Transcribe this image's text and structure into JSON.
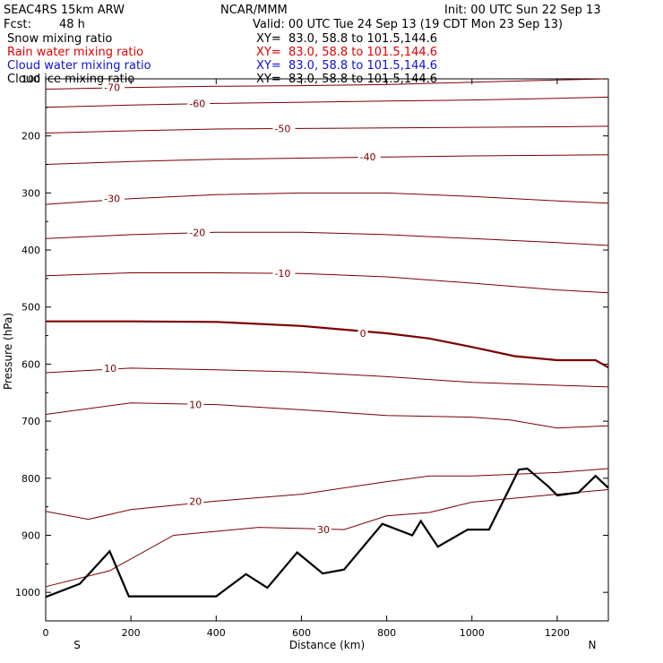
{
  "header": {
    "model": "SEAC4RS 15km ARW",
    "center": "NCAR/MMM",
    "init": "Init: 00 UTC Sun 22 Sep 13",
    "fcst_label": "Fcst:",
    "fcst_value": "48 h",
    "valid": "Valid: 00 UTC Tue 24 Sep 13 (19 CDT Mon 23 Sep 13)"
  },
  "legend": [
    {
      "name": "Snow mixing ratio",
      "xy": "XY=  83.0, 58.8 to 101.5,144.6",
      "color": "#000000"
    },
    {
      "name": "Rain water mixing ratio",
      "xy": "XY=  83.0, 58.8 to 101.5,144.6",
      "color": "#e00000"
    },
    {
      "name": "Cloud water mixing ratio",
      "xy": "XY=  83.0, 58.8 to 101.5,144.6",
      "color": "#1010d0"
    },
    {
      "name": "Cloud ice mixing ratio",
      "xy": "XY=  83.0, 58.8 to 101.5,144.6",
      "color": "#000000"
    }
  ],
  "chart_data": {
    "type": "line",
    "title": "",
    "xlabel": "Distance (km)",
    "ylabel": "Pressure (hPa)",
    "xlim": [
      0,
      1320
    ],
    "ylim": [
      1050,
      100
    ],
    "y_scale": "linear",
    "x_ticks": [
      0,
      200,
      400,
      600,
      800,
      1000,
      1200
    ],
    "y_ticks": [
      100,
      200,
      300,
      400,
      500,
      600,
      700,
      800,
      900,
      1000
    ],
    "x_endpoints": {
      "left": "S",
      "right": "N"
    },
    "isotherm_color": "#7a0000",
    "terrain_color": "#000000",
    "isotherms": [
      {
        "label": "-70",
        "points": [
          [
            0,
            118
          ],
          [
            200,
            115
          ],
          [
            400,
            113
          ],
          [
            600,
            112
          ],
          [
            800,
            110
          ],
          [
            1000,
            106
          ],
          [
            1200,
            102
          ],
          [
            1320,
            100
          ]
        ]
      },
      {
        "label": "-60",
        "points": [
          [
            0,
            150
          ],
          [
            200,
            146
          ],
          [
            400,
            143
          ],
          [
            600,
            141
          ],
          [
            800,
            139
          ],
          [
            1000,
            137
          ],
          [
            1200,
            134
          ],
          [
            1320,
            132
          ]
        ]
      },
      {
        "label": "-50",
        "points": [
          [
            0,
            195
          ],
          [
            200,
            191
          ],
          [
            400,
            188
          ],
          [
            600,
            187
          ],
          [
            800,
            186
          ],
          [
            1000,
            185
          ],
          [
            1200,
            184
          ],
          [
            1320,
            183
          ]
        ]
      },
      {
        "label": "-40",
        "points": [
          [
            0,
            250
          ],
          [
            200,
            245
          ],
          [
            400,
            241
          ],
          [
            600,
            239
          ],
          [
            800,
            237
          ],
          [
            1000,
            235
          ],
          [
            1200,
            234
          ],
          [
            1320,
            233
          ]
        ]
      },
      {
        "label": "-30",
        "points": [
          [
            0,
            320
          ],
          [
            200,
            310
          ],
          [
            400,
            303
          ],
          [
            600,
            300
          ],
          [
            800,
            300
          ],
          [
            1000,
            306
          ],
          [
            1200,
            314
          ],
          [
            1320,
            318
          ]
        ]
      },
      {
        "label": "-20",
        "points": [
          [
            0,
            380
          ],
          [
            200,
            373
          ],
          [
            400,
            369
          ],
          [
            600,
            369
          ],
          [
            800,
            373
          ],
          [
            1000,
            380
          ],
          [
            1200,
            387
          ],
          [
            1320,
            392
          ]
        ]
      },
      {
        "label": "-10",
        "points": [
          [
            0,
            445
          ],
          [
            200,
            440
          ],
          [
            400,
            440
          ],
          [
            600,
            441
          ],
          [
            800,
            447
          ],
          [
            1000,
            458
          ],
          [
            1200,
            470
          ],
          [
            1320,
            475
          ]
        ]
      },
      {
        "label": "0",
        "points": [
          [
            0,
            525
          ],
          [
            200,
            525
          ],
          [
            400,
            526
          ],
          [
            600,
            533
          ],
          [
            800,
            546
          ],
          [
            900,
            555
          ],
          [
            1000,
            570
          ],
          [
            1100,
            586
          ],
          [
            1200,
            593
          ],
          [
            1290,
            593
          ],
          [
            1320,
            606
          ]
        ]
      },
      {
        "label": "10",
        "points": [
          [
            0,
            615
          ],
          [
            200,
            607
          ],
          [
            400,
            610
          ],
          [
            600,
            614
          ],
          [
            800,
            622
          ],
          [
            1000,
            632
          ],
          [
            1200,
            637
          ],
          [
            1320,
            640
          ]
        ]
      },
      {
        "label": "10",
        "points": [
          [
            0,
            688
          ],
          [
            200,
            668
          ],
          [
            400,
            671
          ],
          [
            600,
            680
          ],
          [
            800,
            690
          ],
          [
            1000,
            693
          ],
          [
            1090,
            698
          ],
          [
            1200,
            712
          ],
          [
            1320,
            708
          ]
        ]
      },
      {
        "label": "20",
        "points": [
          [
            0,
            858
          ],
          [
            100,
            872
          ],
          [
            200,
            855
          ],
          [
            400,
            840
          ],
          [
            600,
            828
          ],
          [
            800,
            806
          ],
          [
            900,
            796
          ],
          [
            1000,
            796
          ],
          [
            1200,
            790
          ],
          [
            1320,
            783
          ]
        ]
      },
      {
        "label": "30",
        "points": [
          [
            0,
            990
          ],
          [
            150,
            962
          ],
          [
            300,
            900
          ],
          [
            500,
            886
          ],
          [
            700,
            890
          ],
          [
            800,
            866
          ],
          [
            900,
            860
          ],
          [
            1000,
            842
          ],
          [
            1200,
            828
          ],
          [
            1320,
            820
          ]
        ]
      }
    ],
    "terrain": [
      [
        0,
        1008
      ],
      [
        80,
        985
      ],
      [
        150,
        928
      ],
      [
        195,
        1007
      ],
      [
        400,
        1007
      ],
      [
        470,
        968
      ],
      [
        520,
        992
      ],
      [
        590,
        930
      ],
      [
        650,
        967
      ],
      [
        700,
        960
      ],
      [
        790,
        880
      ],
      [
        860,
        900
      ],
      [
        880,
        875
      ],
      [
        920,
        920
      ],
      [
        990,
        890
      ],
      [
        1040,
        890
      ],
      [
        1110,
        785
      ],
      [
        1130,
        783
      ],
      [
        1180,
        815
      ],
      [
        1200,
        830
      ],
      [
        1250,
        825
      ],
      [
        1290,
        796
      ],
      [
        1320,
        817
      ]
    ],
    "annotations": []
  }
}
